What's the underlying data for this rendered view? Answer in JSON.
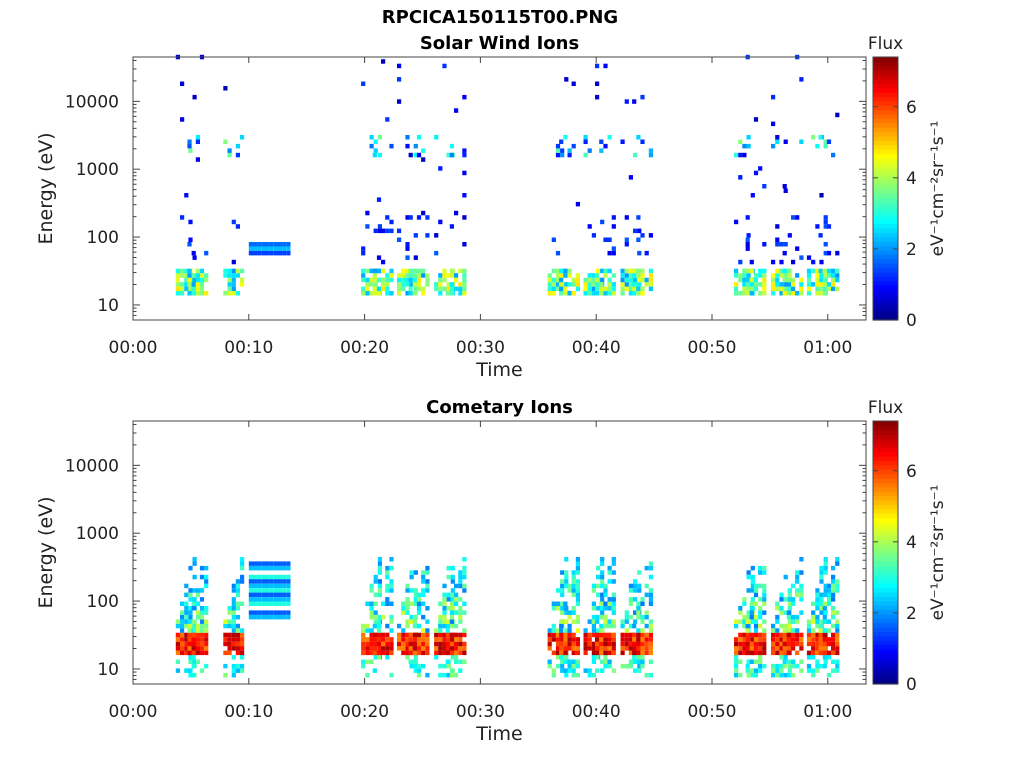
{
  "figure_title": "RPCICA150115T00.PNG",
  "chart_data": [
    {
      "type": "heatmap",
      "title": "Solar Wind Ions",
      "xlabel": "Time",
      "ylabel": "Energy (eV)",
      "yscale": "log",
      "x_tick_labels": [
        "00:00",
        "00:10",
        "00:20",
        "00:30",
        "00:40",
        "00:50",
        "01:00"
      ],
      "x_ticks_min": [
        0,
        10,
        20,
        30,
        40,
        50,
        60
      ],
      "xlim_min": [
        0,
        63.3
      ],
      "y_tick_labels": [
        "10",
        "100",
        "1000",
        "10000"
      ],
      "y_ticks": [
        10,
        100,
        1000,
        10000
      ],
      "ylim": [
        6,
        45000
      ],
      "colorbar": {
        "label": "Flux",
        "unit_label": "eV⁻¹cm⁻²sr⁻¹s⁻¹",
        "range": [
          0,
          7.4
        ],
        "ticks": [
          0,
          2,
          4,
          6
        ],
        "tick_labels": [
          "0",
          "2",
          "4",
          "6"
        ],
        "colormap": "jet"
      },
      "sweeps_start_min": [
        3.8,
        8.0,
        19.8,
        22.9,
        26.1,
        35.9,
        39.0,
        42.2,
        52.0,
        55.2,
        58.3
      ],
      "features": [
        {
          "energy_eV": [
            15,
            35
          ],
          "flux": [
            2,
            4.5
          ],
          "note": "low-energy populations in each sweep"
        },
        {
          "energy_eV": [
            1500,
            3000
          ],
          "flux": [
            1,
            3.5
          ],
          "note": "solar wind proton band"
        },
        {
          "time_min": [
            10,
            13.3
          ],
          "energy_eV": [
            60,
            85
          ],
          "flux": [
            1.5,
            2.5
          ],
          "note": "horizontal streaks"
        }
      ]
    },
    {
      "type": "heatmap",
      "title": "Cometary Ions",
      "xlabel": "Time",
      "ylabel": "Energy (eV)",
      "yscale": "log",
      "x_tick_labels": [
        "00:00",
        "00:10",
        "00:20",
        "00:30",
        "00:40",
        "00:50",
        "01:00"
      ],
      "x_ticks_min": [
        0,
        10,
        20,
        30,
        40,
        50,
        60
      ],
      "xlim_min": [
        0,
        63.3
      ],
      "y_tick_labels": [
        "10",
        "100",
        "1000",
        "10000"
      ],
      "y_ticks": [
        10,
        100,
        1000,
        10000
      ],
      "ylim": [
        6,
        45000
      ],
      "colorbar": {
        "label": "Flux",
        "unit_label": "eV⁻¹cm⁻²sr⁻¹s⁻¹",
        "range": [
          0,
          7.4
        ],
        "ticks": [
          0,
          2,
          4,
          6
        ],
        "tick_labels": [
          "0",
          "2",
          "4",
          "6"
        ],
        "colormap": "jet"
      },
      "sweeps_start_min": [
        3.8,
        8.0,
        19.8,
        22.9,
        26.1,
        35.9,
        39.0,
        42.2,
        52.0,
        55.2,
        58.3
      ],
      "features": [
        {
          "energy_eV": [
            15,
            35
          ],
          "flux": [
            5.5,
            7
          ],
          "note": "intense cometary ion core"
        },
        {
          "energy_eV": [
            40,
            400
          ],
          "flux": [
            2,
            4.5
          ],
          "note": "energy tail rising in each sweep"
        },
        {
          "time_min": [
            10,
            13.3
          ],
          "energy_eV": [
            55,
            350
          ],
          "flux": [
            1.5,
            3
          ],
          "note": "horizontal streaks"
        }
      ]
    }
  ]
}
